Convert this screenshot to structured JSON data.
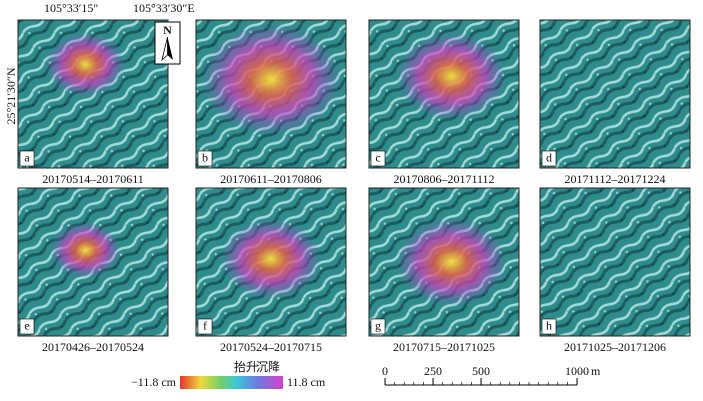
{
  "coords": {
    "lon1": "105°33′15″",
    "lon2": "105°33′30″E",
    "lat": "25°21′30″N",
    "north": "N"
  },
  "panels": [
    {
      "letter": "a",
      "caption": "20170514–20170611"
    },
    {
      "letter": "b",
      "caption": "20170611–20170806"
    },
    {
      "letter": "c",
      "caption": "20170806–20171112"
    },
    {
      "letter": "d",
      "caption": "20171112–20171224"
    },
    {
      "letter": "e",
      "caption": "20170426–20170524"
    },
    {
      "letter": "f",
      "caption": "20170524–20170715"
    },
    {
      "letter": "g",
      "caption": "20170715–20171025"
    },
    {
      "letter": "h",
      "caption": "20171025–20171206"
    }
  ],
  "legend": {
    "uplift": "抬升",
    "subsidence": "沉降",
    "min": "−11.8 cm",
    "max": "11.8 cm"
  },
  "scale": {
    "ticks": [
      0,
      250,
      500,
      1000
    ],
    "unit": "m"
  }
}
